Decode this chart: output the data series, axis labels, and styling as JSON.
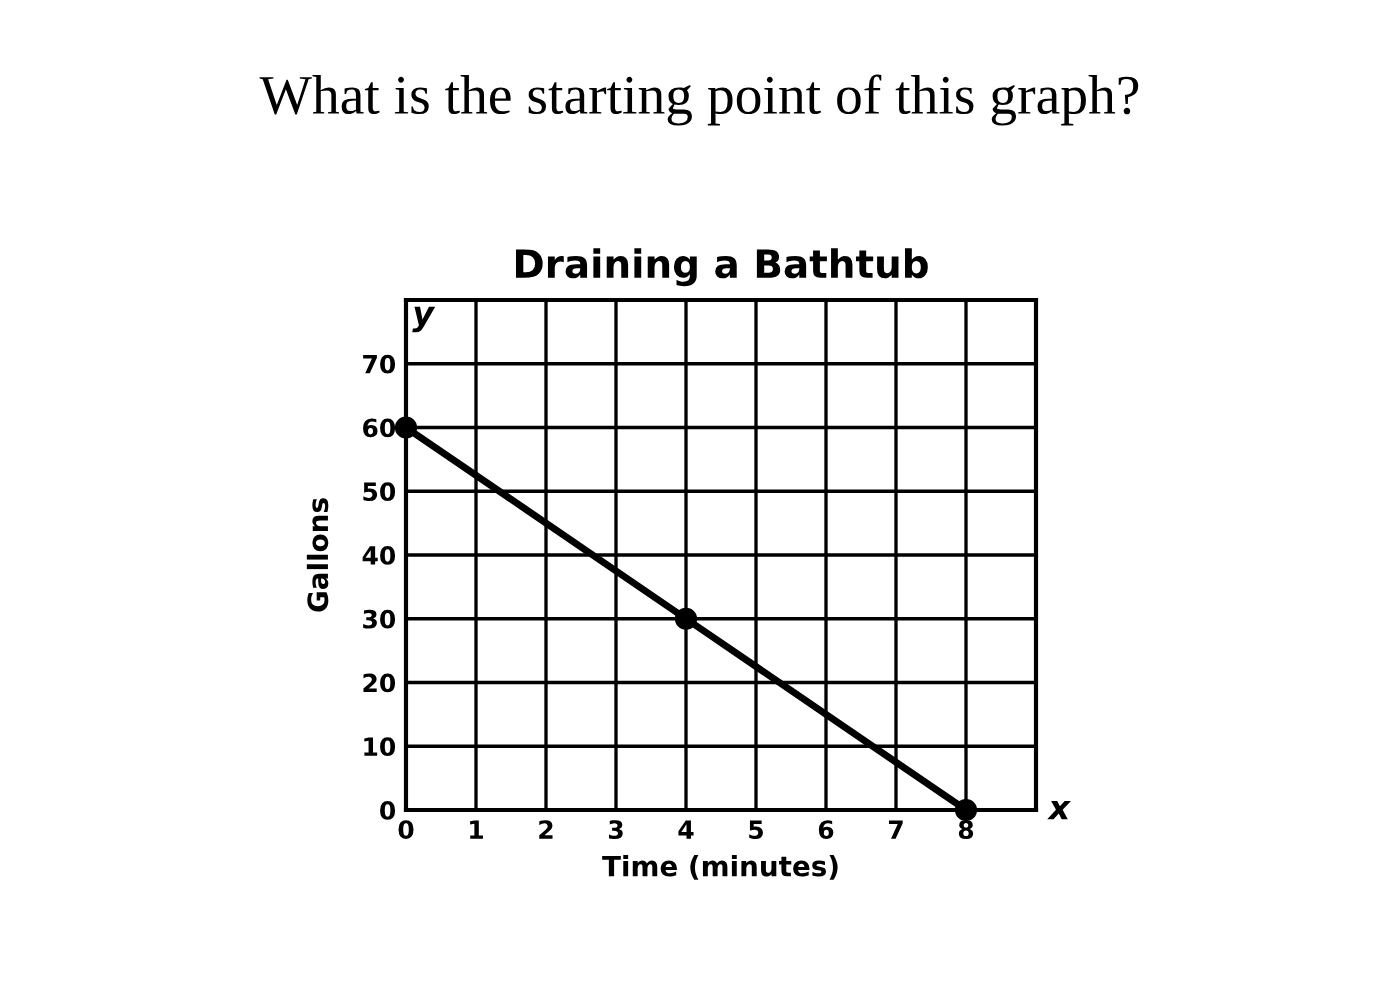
{
  "chart_data": {
    "type": "line",
    "title": "What is the starting point of this graph?",
    "subtitle": "Draining a Bathtub",
    "xlabel": "Time (minutes)",
    "ylabel": "Gallons",
    "x": [
      0,
      4,
      8
    ],
    "series": [
      {
        "color": "#000000",
        "values": [
          60,
          30,
          0
        ]
      }
    ],
    "xlim": [
      0,
      9
    ],
    "xticks": [
      0,
      1,
      2,
      3,
      4,
      5,
      6,
      7,
      8,
      {
        "value": 9,
        "label": null
      }
    ],
    "ylim": [
      0,
      80
    ],
    "yticks": [
      0,
      10,
      20,
      30,
      40,
      50,
      60,
      70,
      {
        "value": 80,
        "label": null
      }
    ],
    "grid": true,
    "marker": "circle",
    "line_style": "solid",
    "annotations": [
      "y",
      "x"
    ]
  }
}
